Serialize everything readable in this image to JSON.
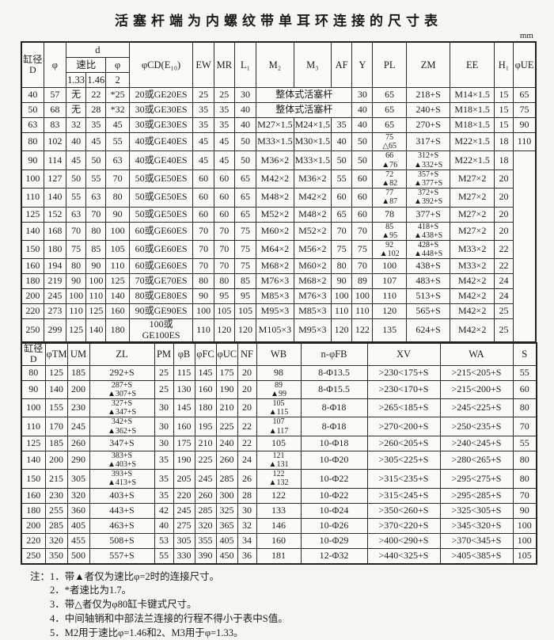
{
  "page": {
    "title": "活塞杆端为内螺纹带单耳环连接的尺寸表",
    "unit": "mm"
  },
  "upper_table": {
    "header": [
      [
        {
          "t": "缸径\nD",
          "rs": 3
        },
        {
          "t": "φ",
          "rs": 3
        },
        {
          "t": "d",
          "cs": 3
        },
        {
          "t": "φCD(E₁₀)",
          "rs": 3
        },
        {
          "t": "EW",
          "rs": 3
        },
        {
          "t": "MR",
          "rs": 3
        },
        {
          "t": "L₁",
          "rs": 3
        },
        {
          "t": "M₂",
          "rs": 3
        },
        {
          "t": "M₃",
          "rs": 3
        },
        {
          "t": "AF",
          "rs": 3
        },
        {
          "t": "Y",
          "rs": 3
        },
        {
          "t": "PL",
          "rs": 3
        },
        {
          "t": "ZM",
          "rs": 3
        },
        {
          "t": "EE",
          "rs": 3
        },
        {
          "t": "H₁",
          "rs": 3
        },
        {
          "t": "φUE",
          "rs": 3
        }
      ],
      [
        {
          "t": "速比",
          "cs": 2
        },
        {
          "t": "φ"
        }
      ],
      [
        {
          "t": "1.33"
        },
        {
          "t": "1.46"
        },
        {
          "t": "2"
        }
      ]
    ],
    "rows": [
      [
        "40",
        "57",
        "无",
        "22",
        "*25",
        "20或GE20ES",
        "25",
        "25",
        "30",
        {
          "t": "整体式活塞杆",
          "cs": 3
        },
        "30",
        "65",
        "218+S",
        "M14×1.5",
        "15",
        "65"
      ],
      [
        "50",
        "68",
        "无",
        "28",
        "*32",
        "30或GE30ES",
        "35",
        "35",
        "40",
        {
          "t": "整体式活塞杆",
          "cs": 3
        },
        "40",
        "65",
        "240+S",
        "M18×1.5",
        "15",
        "75"
      ],
      [
        "63",
        "83",
        "32",
        "35",
        "45",
        "30或GE30ES",
        "35",
        "35",
        "40",
        "M27×1.5",
        "M24×1.5",
        "35",
        "40",
        "65",
        "270+S",
        "M18×1.5",
        "15",
        "90"
      ],
      [
        "80",
        "102",
        "40",
        "45",
        "55",
        "40或GE40ES",
        "45",
        "45",
        "50",
        "M33×1.5",
        "M30×1.5",
        "40",
        "50",
        "75\n△65",
        "317+S",
        "M22×1.5",
        "18",
        "110"
      ],
      [
        "90",
        "114",
        "45",
        "50",
        "63",
        "40或GE40ES",
        "45",
        "45",
        "50",
        "M36×2",
        "M33×1.5",
        "50",
        "50",
        "66\n▲76",
        "312+S\n▲332+S",
        "M22×1.5",
        "18",
        {
          "t": "",
          "rs": 11
        }
      ],
      [
        "100",
        "127",
        "50",
        "55",
        "70",
        "50或GE50ES",
        "60",
        "60",
        "65",
        "M42×2",
        "M36×2",
        "55",
        "60",
        "72\n▲82",
        "357+S\n▲377+S",
        "M27×2",
        "20"
      ],
      [
        "110",
        "140",
        "55",
        "63",
        "80",
        "50或GE50ES",
        "60",
        "60",
        "65",
        "M48×2",
        "M42×2",
        "60",
        "60",
        "77\n▲87",
        "372+S\n▲392+S",
        "M27×2",
        "20"
      ],
      [
        "125",
        "152",
        "63",
        "70",
        "90",
        "50或GE50ES",
        "60",
        "60",
        "65",
        "M52×2",
        "M48×2",
        "65",
        "60",
        "78",
        "377+S",
        "M27×2",
        "20"
      ],
      [
        "140",
        "168",
        "70",
        "80",
        "100",
        "60或GE60ES",
        "70",
        "70",
        "75",
        "M60×2",
        "M52×2",
        "70",
        "70",
        "85\n▲95",
        "418+S\n▲438+S",
        "M27×2",
        "20"
      ],
      [
        "150",
        "180",
        "75",
        "85",
        "105",
        "60或GE60ES",
        "70",
        "70",
        "75",
        "M64×2",
        "M56×2",
        "75",
        "75",
        "92\n▲102",
        "428+S\n▲448+S",
        "M33×2",
        "22"
      ],
      [
        "160",
        "194",
        "80",
        "90",
        "110",
        "60或GE60ES",
        "70",
        "70",
        "75",
        "M68×2",
        "M60×2",
        "80",
        "70",
        "100",
        "438+S",
        "M33×2",
        "22"
      ],
      [
        "180",
        "219",
        "90",
        "100",
        "125",
        "70或GE70ES",
        "80",
        "80",
        "85",
        "M76×3",
        "M68×2",
        "90",
        "89",
        "107",
        "483+S",
        "M42×2",
        "24"
      ],
      [
        "200",
        "245",
        "100",
        "110",
        "140",
        "80或GE80ES",
        "90",
        "95",
        "95",
        "M85×3",
        "M76×3",
        "100",
        "100",
        "110",
        "513+S",
        "M42×2",
        "24"
      ],
      [
        "220",
        "273",
        "110",
        "125",
        "160",
        "90或GE90ES",
        "100",
        "105",
        "105",
        "M95×3",
        "M85×3",
        "110",
        "110",
        "120",
        "565+S",
        "M42×2",
        "25"
      ],
      [
        "250",
        "299",
        "125",
        "140",
        "180",
        "100或GE100ES",
        "110",
        "120",
        "120",
        "M105×3",
        "M95×3",
        "120",
        "122",
        "135",
        "624+S",
        "M42×2",
        "25"
      ]
    ]
  },
  "lower_table": {
    "header": [
      [
        {
          "t": "缸径\nD"
        },
        {
          "t": "φTM"
        },
        {
          "t": "UM"
        },
        {
          "t": "ZL"
        },
        {
          "t": "PM"
        },
        {
          "t": "φB"
        },
        {
          "t": "φFC"
        },
        {
          "t": "φUC"
        },
        {
          "t": "NF"
        },
        {
          "t": "WB"
        },
        {
          "t": "n-φFB"
        },
        {
          "t": "XV"
        },
        {
          "t": "WA"
        },
        {
          "t": "S"
        }
      ]
    ],
    "rows": [
      [
        "80",
        "125",
        "185",
        "292+S",
        "25",
        "115",
        "145",
        "175",
        "20",
        "98",
        "8-Φ13.5",
        ">230<175+S",
        ">215<205+S",
        "55"
      ],
      [
        "90",
        "140",
        "200",
        "287+S\n▲307+S",
        "25",
        "130",
        "160",
        "190",
        "20",
        "89\n▲99",
        "8-Φ15.5",
        ">230<170+S",
        ">215<200+S",
        "60"
      ],
      [
        "100",
        "155",
        "230",
        "327+S\n▲347+S",
        "30",
        "145",
        "180",
        "210",
        "20",
        "105\n▲115",
        "8-Φ18",
        ">265<185+S",
        ">245<225+S",
        "80"
      ],
      [
        "110",
        "170",
        "245",
        "342+S\n▲362+S",
        "30",
        "160",
        "195",
        "225",
        "22",
        "107\n▲117",
        "8-Φ18",
        ">270<200+S",
        ">250<235+S",
        "70"
      ],
      [
        "125",
        "185",
        "260",
        "347+S",
        "30",
        "175",
        "210",
        "240",
        "22",
        "105",
        "10-Φ18",
        ">260<205+S",
        ">240<245+S",
        "55"
      ],
      [
        "140",
        "200",
        "290",
        "383+S\n▲403+S",
        "35",
        "190",
        "225",
        "260",
        "24",
        "121\n▲131",
        "10-Φ20",
        ">305<225+S",
        ">280<265+S",
        "80"
      ],
      [
        "150",
        "215",
        "305",
        "393+S\n▲413+S",
        "35",
        "205",
        "245",
        "285",
        "26",
        "122\n▲132",
        "10-Φ22",
        ">315<235+S",
        ">295<275+S",
        "80"
      ],
      [
        "160",
        "230",
        "320",
        "403+S",
        "35",
        "220",
        "260",
        "300",
        "28",
        "122",
        "10-Φ22",
        ">315<245+S",
        ">295<285+S",
        "70"
      ],
      [
        "180",
        "255",
        "360",
        "443+S",
        "42",
        "245",
        "285",
        "325",
        "30",
        "133",
        "10-Φ24",
        ">350<260+S",
        ">325<305+S",
        "90"
      ],
      [
        "200",
        "285",
        "405",
        "463+S",
        "40",
        "275",
        "320",
        "365",
        "32",
        "146",
        "10-Φ26",
        ">370<220+S",
        ">345<320+S",
        "100"
      ],
      [
        "220",
        "320",
        "455",
        "508+S",
        "53",
        "305",
        "355",
        "405",
        "34",
        "160",
        "10-Φ29",
        ">400<290+S",
        ">370<345+S",
        "100"
      ],
      [
        "250",
        "350",
        "500",
        "557+S",
        "55",
        "330",
        "390",
        "450",
        "36",
        "181",
        "12-Φ32",
        ">440<325+S",
        ">405<385+S",
        "105"
      ]
    ]
  },
  "notes": {
    "prefix": "注：",
    "lines": [
      "1．带▲者仅为速比φ=2时的连接尺寸。",
      "2．*者速比为1.7。",
      "3．带△者仅为φ80缸卡键式尺寸。",
      "4．中间轴销和中部法兰连接的行程不得小于表中S值。",
      "5．M2用于速比φ=1.46和2、M3用于φ=1.33。"
    ]
  }
}
